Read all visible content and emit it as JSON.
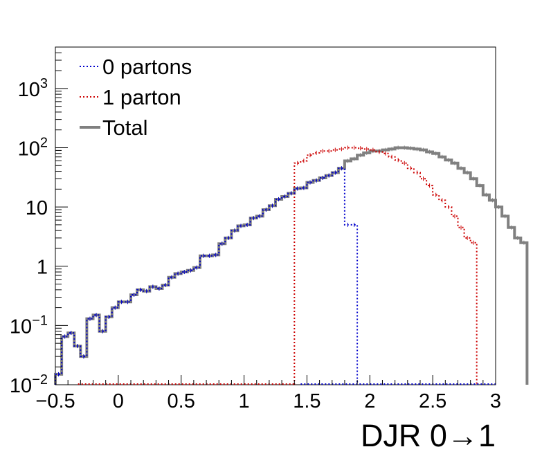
{
  "chart_data": {
    "type": "line",
    "title": "",
    "xlabel": "DJR 0→1",
    "ylabel": "",
    "xlim": [
      -0.5,
      3.0
    ],
    "ylim": [
      0.01,
      5000
    ],
    "yscale": "log",
    "grid": false,
    "legend_position": "top-left",
    "x_ticks": [
      "−0.5",
      "0",
      "0.5",
      "1",
      "1.5",
      "2",
      "2.5",
      "3"
    ],
    "y_ticks": [
      {
        "base": "10",
        "exp": "−2"
      },
      {
        "base": "10",
        "exp": "−1"
      },
      {
        "base": "1",
        "exp": ""
      },
      {
        "base": "10",
        "exp": ""
      },
      {
        "base": "10",
        "exp": "2"
      },
      {
        "base": "10",
        "exp": "3"
      }
    ],
    "bin_edges_start": -0.5,
    "bin_width": 0.05,
    "series": [
      {
        "name": "0 partons",
        "color": "#0000cc",
        "style": "dotted",
        "values": [
          0.015,
          0.065,
          0.075,
          0.045,
          0.03,
          0.13,
          0.15,
          0.08,
          0.14,
          0.2,
          0.25,
          0.25,
          0.33,
          0.4,
          0.38,
          0.45,
          0.42,
          0.48,
          0.65,
          0.75,
          0.8,
          0.85,
          0.95,
          1.5,
          1.5,
          1.55,
          2.4,
          3.0,
          4.0,
          4.8,
          5.0,
          6.5,
          7.0,
          9.0,
          10.5,
          13.5,
          15.0,
          17.0,
          20.5,
          21.0,
          26.0,
          28.0,
          31.0,
          34.0,
          38.0,
          45.0,
          5.0,
          5.0
        ]
      },
      {
        "name": "1 parton",
        "color": "#cc0000",
        "style": "dotted",
        "values": [
          55,
          60,
          75,
          82,
          88,
          88,
          92,
          95,
          100,
          100,
          98,
          95,
          92,
          85,
          80,
          70,
          62,
          55,
          45,
          38,
          30,
          23,
          16,
          13,
          10,
          7,
          4.5,
          3.0,
          2.5
        ]
      },
      {
        "name": "Total",
        "color": "#808080",
        "style": "solid",
        "values": [
          0.015,
          0.065,
          0.075,
          0.045,
          0.03,
          0.13,
          0.15,
          0.08,
          0.14,
          0.2,
          0.25,
          0.25,
          0.33,
          0.4,
          0.38,
          0.45,
          0.42,
          0.48,
          0.65,
          0.75,
          0.8,
          0.85,
          0.95,
          1.5,
          1.5,
          1.55,
          2.4,
          3.0,
          4.0,
          4.8,
          5.0,
          6.5,
          7.0,
          9.0,
          10.5,
          13.5,
          15.0,
          17.0,
          20.5,
          21.0,
          26.0,
          28.0,
          31.0,
          34.0,
          38.0,
          45.0,
          60.0,
          65.0,
          75,
          82,
          88,
          88,
          92,
          95,
          100,
          100,
          98,
          95,
          92,
          85,
          80,
          70,
          62,
          55,
          45,
          38,
          30,
          23,
          16,
          13,
          10,
          7,
          4.5,
          3.0,
          2.5
        ]
      }
    ]
  }
}
